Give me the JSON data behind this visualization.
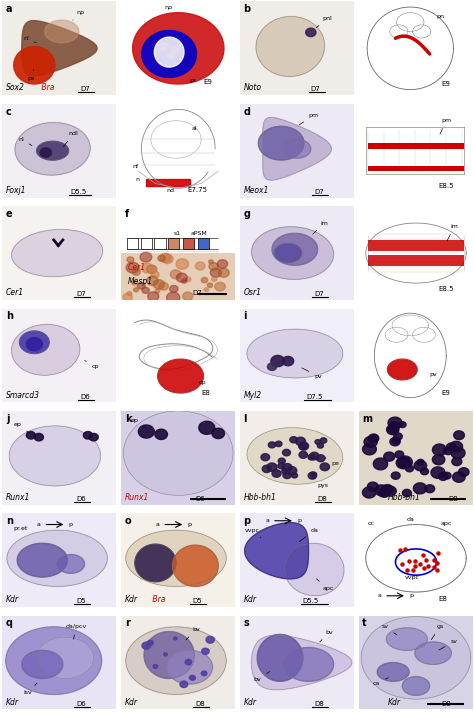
{
  "figure_size": [
    4.74,
    7.13
  ],
  "dpi": 100,
  "bg_color": "#ffffff",
  "panel_labels": [
    "a",
    "b",
    "c",
    "d",
    "e",
    "f",
    "g",
    "h",
    "i",
    "j",
    "k",
    "l",
    "m",
    "n",
    "o",
    "p",
    "q",
    "r",
    "s",
    "t"
  ],
  "gene_labels": {
    "a": {
      "text": "Sox2",
      "text2": " Bra",
      "color2": "#cc0000",
      "day": "D7"
    },
    "b": {
      "text": "Noto",
      "day": "D7"
    },
    "c": {
      "text": "Foxj1",
      "day": "D5.5"
    },
    "d": {
      "text": "Meox1",
      "day": "D7"
    },
    "e": {
      "text": "Cer1",
      "day": "D7"
    },
    "g": {
      "text": "Osr1",
      "day": "D7"
    },
    "h": {
      "text": "Smarcd3",
      "day": "D6"
    },
    "i": {
      "text": "Myl2",
      "day": "D7.5"
    },
    "j": {
      "text": "Runx1",
      "day": "D6"
    },
    "k": {
      "text": "Runx1",
      "color": "#cc0000",
      "day": "D6"
    },
    "l": {
      "text": "Hbb-bh1",
      "day": "D8"
    },
    "n": {
      "text": "Kdr",
      "day": "D5"
    },
    "o": {
      "text": "Kdr",
      "text2": " Bra",
      "color2": "#cc0000",
      "day": "D5"
    },
    "p": {
      "text": "Kdr",
      "day": "D5.5"
    },
    "q": {
      "text": "Kdr",
      "day": "D6"
    },
    "r": {
      "text": "Kdr",
      "day": "D8"
    },
    "s": {
      "text": "Kdr",
      "day": "D8"
    },
    "t": {
      "text": "Kdr",
      "day": "D8"
    }
  },
  "colors": {
    "embryo_tan": "#d4c4b0",
    "embryo_purple_light": "#c8bcd8",
    "embryo_purple_dark": "#7060a0",
    "stain_dark": "#2a1848",
    "stain_med": "#5040a0",
    "red": "#cc0000",
    "blue": "#0000cc",
    "brown": "#7a4830",
    "orange_red": "#cc5522",
    "diagram_line": "#888888",
    "somite_orange": "#cc8866",
    "somite_red": "#cc5544",
    "somite_blue": "#4466cc"
  }
}
